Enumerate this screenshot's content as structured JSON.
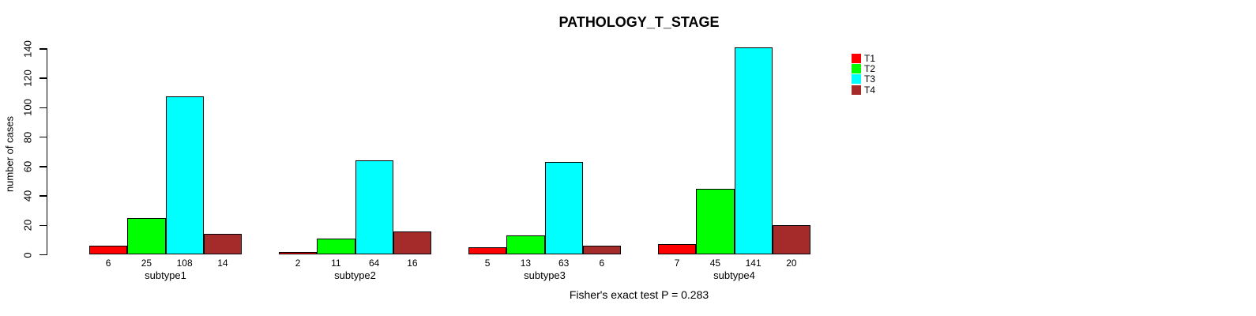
{
  "chart_data": {
    "type": "bar",
    "title": "PATHOLOGY_T_STAGE",
    "xlabel": "",
    "ylabel": "number of cases",
    "categories": [
      "subtype1",
      "subtype2",
      "subtype3",
      "subtype4"
    ],
    "series": [
      {
        "name": "T1",
        "color": "#ff0000",
        "values": [
          6,
          2,
          5,
          7
        ]
      },
      {
        "name": "T2",
        "color": "#00ff00",
        "values": [
          25,
          11,
          13,
          45
        ]
      },
      {
        "name": "T3",
        "color": "#00ffff",
        "values": [
          108,
          64,
          63,
          141
        ]
      },
      {
        "name": "T4",
        "color": "#a52a2a",
        "values": [
          14,
          16,
          6,
          20
        ]
      }
    ],
    "ylim": [
      0,
      140
    ],
    "yticks": [
      0,
      20,
      40,
      60,
      80,
      100,
      120,
      140
    ],
    "grid": false,
    "legend_position": "top-right",
    "bar_value_labels": true,
    "annotation": "Fisher's exact test P = 0.283",
    "bar_border_color": "#000000",
    "text_color": "#000000",
    "background_color": "#ffffff"
  }
}
